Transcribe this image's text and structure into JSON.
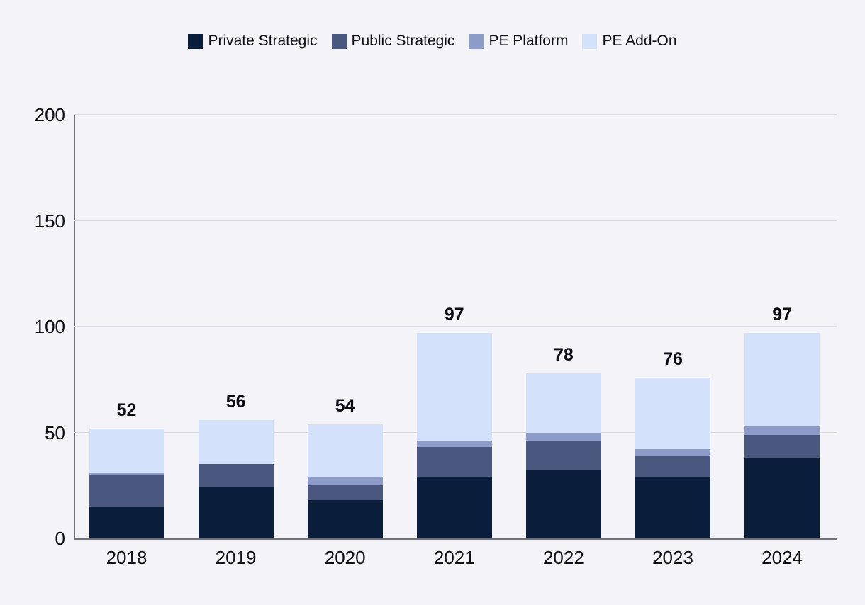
{
  "background_color": "#f4f4f8",
  "text_color": "#0e1016",
  "gridline_color": "#d8d9df",
  "axis_line_color": "#6e6f77",
  "legend": {
    "items": [
      {
        "label": "Private Strategic",
        "color": "#0a1e3c",
        "swatch_icon": "square-swatch-icon"
      },
      {
        "label": "Public Strategic",
        "color": "#4a577e",
        "swatch_icon": "square-swatch-icon"
      },
      {
        "label": "PE Platform",
        "color": "#8c9bc8",
        "swatch_icon": "square-swatch-icon"
      },
      {
        "label": "PE Add-On",
        "color": "#d4e1fb",
        "swatch_icon": "square-swatch-icon"
      }
    ]
  },
  "chart_data": {
    "type": "bar",
    "subtype": "stacked-vertical",
    "title": "",
    "xlabel": "",
    "ylabel": "",
    "categories": [
      "2018",
      "2019",
      "2020",
      "2021",
      "2022",
      "2023",
      "2024"
    ],
    "series": [
      {
        "name": "Private Strategic",
        "color": "#0a1e3c",
        "values": [
          15,
          24,
          18,
          29,
          32,
          29,
          38
        ]
      },
      {
        "name": "Public Strategic",
        "color": "#4a577e",
        "values": [
          15,
          11,
          7,
          14,
          14,
          10,
          11
        ]
      },
      {
        "name": "PE Platform",
        "color": "#8c9bc8",
        "values": [
          1,
          0,
          4,
          3,
          4,
          3,
          4
        ]
      },
      {
        "name": "PE Add-On",
        "color": "#d4e1fb",
        "values": [
          21,
          21,
          25,
          51,
          28,
          34,
          44
        ]
      }
    ],
    "totals": [
      52,
      56,
      54,
      97,
      78,
      76,
      97
    ],
    "ylim": [
      0,
      200
    ],
    "yticks": [
      0,
      50,
      100,
      150,
      200
    ],
    "grid": true,
    "legend_position": "top"
  }
}
